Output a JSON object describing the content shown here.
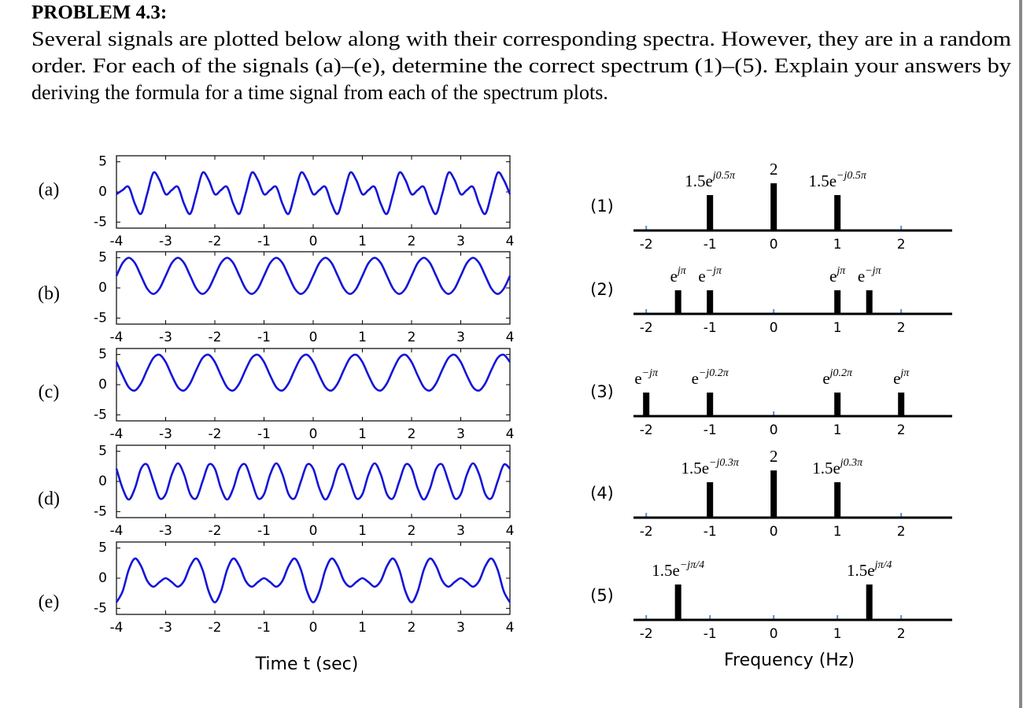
{
  "header": {
    "title": "PROBLEM 4.3:",
    "text_lines": [
      "Several signals are plotted below along with their corresponding spectra. However, they are in a random",
      "order. For each of the signals (a)–(e), determine the correct spectrum (1)–(5). Explain your answers by",
      "deriving the formula for a time signal from each of the spectrum plots."
    ]
  },
  "time_plots": {
    "xlabel": "Time t (sec)",
    "xlim": [
      -4,
      4
    ],
    "xticks": [
      -4,
      -3,
      -2,
      -1,
      0,
      1,
      2,
      3,
      4
    ],
    "ylim": [
      -6,
      6
    ],
    "yticks": [
      5,
      0,
      -5
    ],
    "color": "#1515d8",
    "t": [
      -4,
      -3.875,
      -3.75,
      -3.625,
      -3.5,
      -3.375,
      -3.25,
      -3.125,
      -3,
      -2.875,
      -2.75,
      -2.625,
      -2.5,
      -2.375,
      -2.25,
      -2.125,
      -2,
      -1.875,
      -1.75,
      -1.625,
      -1.5,
      -1.375,
      -1.25,
      -1.125,
      -1,
      -0.875,
      -0.75,
      -0.625,
      -0.5,
      -0.375,
      -0.25,
      -0.125,
      0,
      0.125,
      0.25,
      0.375,
      0.5,
      0.625,
      0.75,
      0.875,
      1,
      1.125,
      1.25,
      1.375,
      1.5,
      1.625,
      1.75,
      1.875,
      2,
      2.125,
      2.25,
      2.375,
      2.5,
      2.625,
      2.75,
      2.875,
      3,
      3.125,
      3.25,
      3.375,
      3.5,
      3.625,
      3.75,
      3.875,
      4
    ],
    "signals": [
      {
        "label": "(a)",
        "values": [
          -0.38,
          0.31,
          0.82,
          -1.98,
          -3.62,
          -0.31,
          3.18,
          1.98,
          -0.38,
          0.31,
          0.82,
          -1.98,
          -3.62,
          -0.31,
          3.18,
          1.98,
          -0.38,
          0.31,
          0.82,
          -1.98,
          -3.62,
          -0.31,
          3.18,
          1.98,
          -0.38,
          0.31,
          0.82,
          -1.98,
          -3.62,
          -0.31,
          3.18,
          1.98,
          -0.38,
          0.31,
          0.82,
          -1.98,
          -3.62,
          -0.31,
          3.18,
          1.98,
          -0.38,
          0.31,
          0.82,
          -1.98,
          -3.62,
          -0.31,
          3.18,
          1.98,
          -0.38,
          0.31,
          0.82,
          -1.98,
          -3.62,
          -0.31,
          3.18,
          1.98,
          -0.38,
          0.31,
          0.82,
          -1.98,
          -3.62,
          -0.31,
          3.18,
          1.98,
          -0.38
        ]
      },
      {
        "label": "(b)",
        "values": [
          2,
          4.12,
          5,
          4.12,
          2,
          -0.12,
          -1,
          -0.12,
          2,
          4.12,
          5,
          4.12,
          2,
          -0.12,
          -1,
          -0.12,
          2,
          4.12,
          5,
          4.12,
          2,
          -0.12,
          -1,
          -0.12,
          2,
          4.12,
          5,
          4.12,
          2,
          -0.12,
          -1,
          -0.12,
          2,
          4.12,
          5,
          4.12,
          2,
          -0.12,
          -1,
          -0.12,
          2,
          4.12,
          5,
          4.12,
          2,
          -0.12,
          -1,
          -0.12,
          2,
          4.12,
          5,
          4.12,
          2,
          -0.12,
          -1,
          -0.12,
          2,
          4.12,
          5,
          4.12,
          2,
          -0.12,
          -1,
          -0.12,
          2
        ]
      },
      {
        "label": "(c)",
        "values": [
          3.76,
          1.53,
          -0.43,
          -0.96,
          0.24,
          2.47,
          4.43,
          4.96,
          3.76,
          1.53,
          -0.43,
          -0.96,
          0.24,
          2.47,
          4.43,
          4.96,
          3.76,
          1.53,
          -0.43,
          -0.96,
          0.24,
          2.47,
          4.43,
          4.96,
          3.76,
          1.53,
          -0.43,
          -0.96,
          0.24,
          2.47,
          4.43,
          4.96,
          3.76,
          1.53,
          -0.43,
          -0.96,
          0.24,
          2.47,
          4.43,
          4.96,
          3.76,
          1.53,
          -0.43,
          -0.96,
          0.24,
          2.47,
          4.43,
          4.96,
          3.76,
          1.53,
          -0.43,
          -0.96,
          0.24,
          2.47,
          4.43,
          4.96,
          3.76,
          1.53,
          -0.43,
          -0.96,
          0.24,
          2.47,
          4.43,
          4.96,
          3.76
        ]
      },
      {
        "label": "(d)",
        "values": [
          2.12,
          -1.15,
          -3,
          -1.15,
          2.12,
          2.77,
          0,
          -2.77,
          -2.12,
          1.15,
          3,
          1.15,
          -2.12,
          -2.77,
          0,
          2.77,
          2.12,
          -1.15,
          -3,
          -1.15,
          2.12,
          2.77,
          0,
          -2.77,
          -2.12,
          1.15,
          3,
          1.15,
          -2.12,
          -2.77,
          0,
          2.77,
          2.12,
          -1.15,
          -3,
          -1.15,
          2.12,
          2.77,
          0,
          -2.77,
          -2.12,
          1.15,
          3,
          1.15,
          -2.12,
          -2.77,
          0,
          2.77,
          2.12,
          -1.15,
          -3,
          -1.15,
          2.12,
          2.77,
          0,
          -2.77,
          -2.12,
          1.15,
          3,
          1.15,
          -2.12,
          -2.77,
          0,
          2.77,
          2.12
        ]
      },
      {
        "label": "(e)",
        "values": [
          -4,
          -2.18,
          1.41,
          3.26,
          2,
          -0.43,
          -1.41,
          -0.65,
          0,
          -0.65,
          -1.41,
          -0.43,
          2,
          3.26,
          1.41,
          -2.18,
          -4,
          -2.18,
          1.41,
          3.26,
          2,
          -0.43,
          -1.41,
          -0.65,
          0,
          -0.65,
          -1.41,
          -0.43,
          2,
          3.26,
          1.41,
          -2.18,
          -4,
          -2.18,
          1.41,
          3.26,
          2,
          -0.43,
          -1.41,
          -0.65,
          0,
          -0.65,
          -1.41,
          -0.43,
          2,
          3.26,
          1.41,
          -2.18,
          -4,
          -2.18,
          1.41,
          3.26,
          2,
          -0.43,
          -1.41,
          -0.65,
          0,
          -0.65,
          -1.41,
          -0.43,
          2,
          3.26,
          1.41,
          -2.18,
          -4
        ]
      }
    ]
  },
  "spectra": {
    "xlabel": "Frequency (Hz)",
    "xlim": [
      -2.2,
      2.8
    ],
    "xticks": [
      -2,
      -1,
      0,
      1,
      2
    ],
    "plots": [
      {
        "label": "(1)",
        "stems": [
          {
            "f": -1,
            "mag": 1.5,
            "label": {
              "base": "1.5e",
              "sup": "j0.5π"
            }
          },
          {
            "f": 0,
            "mag": 2,
            "label": {
              "base": "2"
            }
          },
          {
            "f": 1,
            "mag": 1.5,
            "label": {
              "base": "1.5e",
              "sup": "−j0.5π"
            }
          }
        ]
      },
      {
        "label": "(2)",
        "stems": [
          {
            "f": -1.5,
            "mag": 1,
            "label": {
              "base": "e",
              "sup": "jπ"
            }
          },
          {
            "f": -1,
            "mag": 1,
            "label": {
              "base": "e",
              "sup": "−jπ"
            }
          },
          {
            "f": 1,
            "mag": 1,
            "label": {
              "base": "e",
              "sup": "jπ"
            }
          },
          {
            "f": 1.5,
            "mag": 1,
            "label": {
              "base": "e",
              "sup": "−jπ"
            }
          }
        ]
      },
      {
        "label": "(3)",
        "stems": [
          {
            "f": -2,
            "mag": 1,
            "label": {
              "base": "e",
              "sup": "−jπ"
            }
          },
          {
            "f": -1,
            "mag": 1,
            "label": {
              "base": "e",
              "sup": "−j0.2π"
            }
          },
          {
            "f": 1,
            "mag": 1,
            "label": {
              "base": "e",
              "sup": "j0.2π"
            }
          },
          {
            "f": 2,
            "mag": 1,
            "label": {
              "base": "e",
              "sup": "jπ"
            }
          }
        ]
      },
      {
        "label": "(4)",
        "stems": [
          {
            "f": -1,
            "mag": 1.5,
            "label": {
              "base": "1.5e",
              "sup": "−j0.3π"
            }
          },
          {
            "f": 0,
            "mag": 2,
            "label": {
              "base": "2"
            }
          },
          {
            "f": 1,
            "mag": 1.5,
            "label": {
              "base": "1.5e",
              "sup": "j0.3π"
            }
          }
        ]
      },
      {
        "label": "(5)",
        "stems": [
          {
            "f": -1.5,
            "mag": 1.5,
            "label": {
              "base": "1.5e",
              "sup": "−jπ/4"
            }
          },
          {
            "f": 1.5,
            "mag": 1.5,
            "label": {
              "base": "1.5e",
              "sup": "jπ/4"
            }
          }
        ]
      }
    ]
  }
}
